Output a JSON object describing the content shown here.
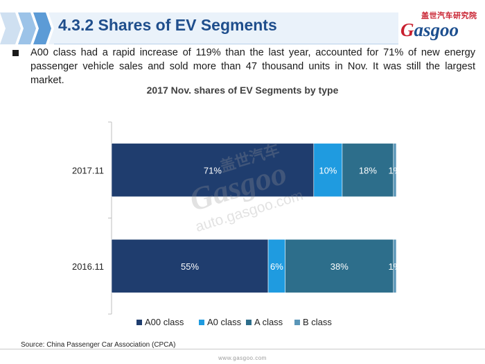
{
  "header": {
    "title": "4.3.2 Shares of EV Segments",
    "logo_cn": "盖世汽车研究院",
    "logo_word": "Gasgoo"
  },
  "body_text": "A00 class had a rapid increase of 119% than the last year, accounted for 71% of new energy passenger vehicle sales and sold more than 47 thousand units in Nov. It was still the largest market.",
  "chart_data": {
    "type": "bar",
    "orientation": "horizontal",
    "stacked": true,
    "percent": true,
    "title": "2017 Nov. shares of EV Segments by type",
    "categories": [
      "2017.11",
      "2016.11"
    ],
    "series": [
      {
        "name": "A00 class",
        "color": "#1f3d6e",
        "values": [
          71,
          55
        ],
        "labels": [
          "71%",
          "55%"
        ]
      },
      {
        "name": "A0 class",
        "color": "#1f9be0",
        "values": [
          10,
          6
        ],
        "labels": [
          "10%",
          "6%"
        ]
      },
      {
        "name": "A class",
        "color": "#2d6e8b",
        "values": [
          18,
          38
        ],
        "labels": [
          "18%",
          "38%"
        ]
      },
      {
        "name": "B class",
        "color": "#5a96b8",
        "values": [
          1,
          1
        ],
        "labels": [
          "1%",
          "1%"
        ]
      }
    ],
    "xlim": [
      0,
      100
    ],
    "legend_position": "bottom",
    "grid": false
  },
  "watermark": {
    "cn": "盖世汽车",
    "word": "Gasgoo",
    "url": "auto.gasgoo.com"
  },
  "source": "Source: China Passenger Car Association (CPCA)",
  "footer_url": "www.gasgoo.com",
  "colors": {
    "title": "#1f4e8c",
    "band_light": "#cfe0f1",
    "band_mid": "#6fa8dc",
    "band_dark": "#1f4e8c"
  }
}
